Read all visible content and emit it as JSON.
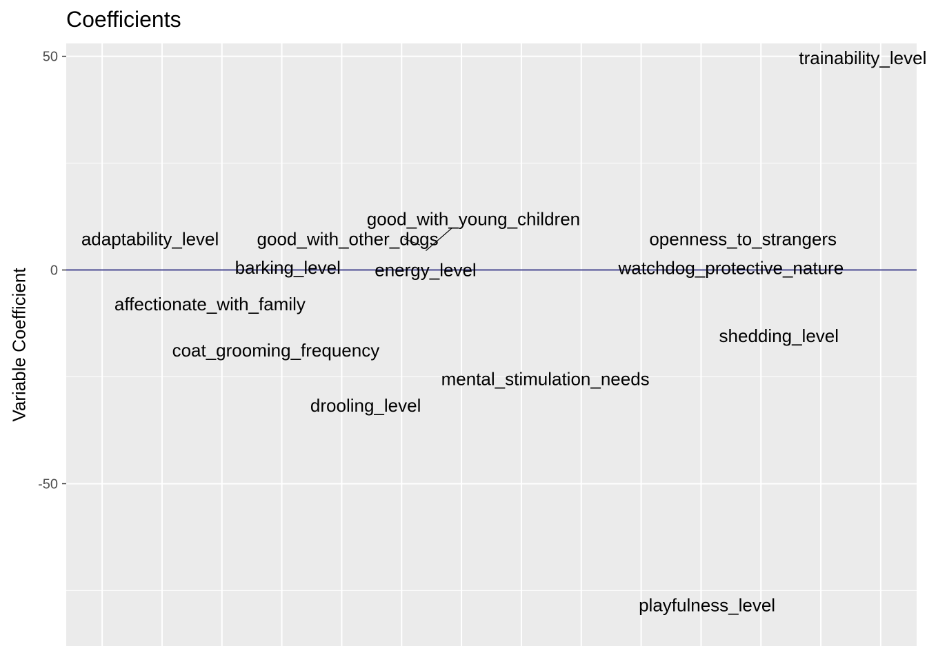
{
  "chart_data": {
    "type": "scatter",
    "title": "Coefficients",
    "xlabel": "",
    "ylabel": "Variable Coefficient",
    "ylim": [
      -88,
      53
    ],
    "xlim": [
      0.4,
      14.6
    ],
    "y_ticks": [
      {
        "value": 50,
        "label": "50"
      },
      {
        "value": 0,
        "label": "0"
      },
      {
        "value": -50,
        "label": "-50"
      }
    ],
    "x_gridlines": [
      1,
      2,
      3,
      4,
      5,
      6,
      7,
      8,
      9,
      10,
      11,
      12,
      13,
      14
    ],
    "hline": {
      "value": 0,
      "color": "#000066"
    },
    "grid": true,
    "panel_color": "#ebebeb",
    "grid_color": "#ffffff",
    "points": [
      {
        "label": "adaptability_level",
        "x": 1.8,
        "y": 7.3
      },
      {
        "label": "affectionate_with_family",
        "x": 2.8,
        "y": -8.0
      },
      {
        "label": "coat_grooming_frequency",
        "x": 3.9,
        "y": -18.8
      },
      {
        "label": "barking_level",
        "x": 4.1,
        "y": 0.6
      },
      {
        "label": "good_with_other_dogs",
        "x": 5.1,
        "y": 7.3
      },
      {
        "label": "drooling_level",
        "x": 5.4,
        "y": -31.7
      },
      {
        "label": "energy_level",
        "x": 6.4,
        "y": 0.0
      },
      {
        "label": "good_with_young_children",
        "x": 7.2,
        "y": 5.0
      },
      {
        "label": "mental_stimulation_needs",
        "x": 8.4,
        "y": -25.5
      },
      {
        "label": "watchdog_protective_nature",
        "x": 11.5,
        "y": 0.5
      },
      {
        "label": "openness_to_strangers",
        "x": 11.7,
        "y": 7.3
      },
      {
        "label": "shedding_level",
        "x": 12.3,
        "y": -15.4
      },
      {
        "label": "playfulness_level",
        "x": 11.1,
        "y": -78.4
      },
      {
        "label": "trainability_level",
        "x": 13.7,
        "y": 49.6
      }
    ]
  }
}
